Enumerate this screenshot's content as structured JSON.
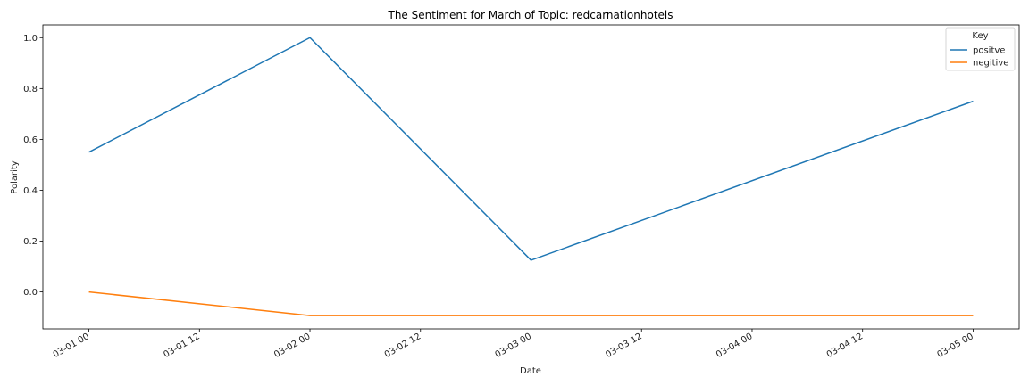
{
  "chart_data": {
    "type": "line",
    "title": "The Sentiment for March of Topic: redcarnationhotels",
    "xlabel": "Date",
    "ylabel": "Polarity",
    "x": [
      "03-01 00",
      "03-02 00",
      "03-03 00",
      "03-05 00"
    ],
    "x_hours": [
      0,
      24,
      48,
      96
    ],
    "xlim_hours": [
      -5,
      101
    ],
    "xticks": [
      {
        "hours": 0,
        "label": "03-01 00"
      },
      {
        "hours": 12,
        "label": "03-01 12"
      },
      {
        "hours": 24,
        "label": "03-02 00"
      },
      {
        "hours": 36,
        "label": "03-02 12"
      },
      {
        "hours": 48,
        "label": "03-03 00"
      },
      {
        "hours": 60,
        "label": "03-03 12"
      },
      {
        "hours": 72,
        "label": "03-04 00"
      },
      {
        "hours": 84,
        "label": "03-04 12"
      },
      {
        "hours": 96,
        "label": "03-05 00"
      }
    ],
    "ylim": [
      -0.145,
      1.05
    ],
    "yticks": [
      "0.0",
      "0.2",
      "0.4",
      "0.6",
      "0.8",
      "1.0"
    ],
    "yticks_values": [
      0.0,
      0.2,
      0.4,
      0.6,
      0.8,
      1.0
    ],
    "series": [
      {
        "name": "positve",
        "color": "#1f77b4",
        "values": [
          0.55,
          1.0,
          0.125,
          0.75
        ]
      },
      {
        "name": "negitive",
        "color": "#ff7f0e",
        "values": [
          0.0,
          -0.093,
          -0.093,
          -0.093
        ]
      }
    ],
    "legend": {
      "title": "Key",
      "placement": "top-right"
    },
    "grid": false
  }
}
